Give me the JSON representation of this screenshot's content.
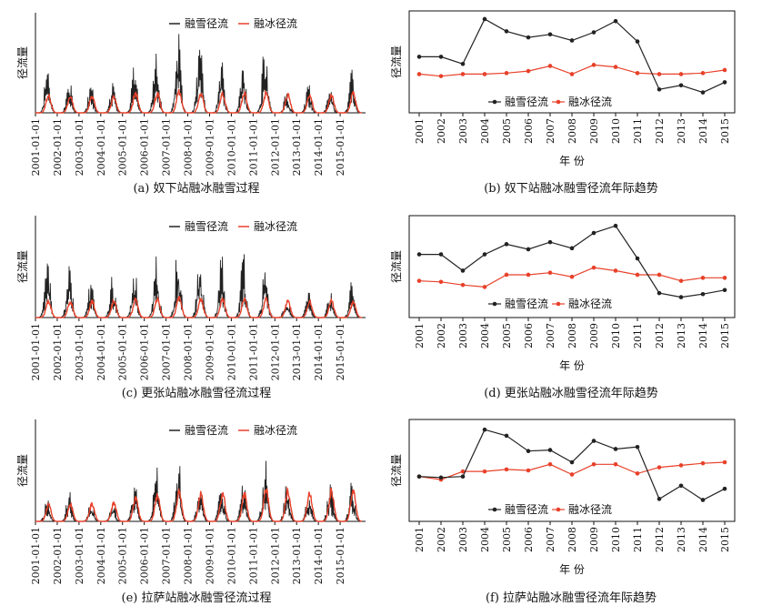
{
  "legend": {
    "snow": "融雪径流",
    "ice": "融冰径流"
  },
  "colors": {
    "snow": "#222222",
    "ice": "#e8412a"
  },
  "ylabel": "径流量",
  "xlabel_year": "年 份",
  "captions": [
    "(a) 奴下站融冰融雪过程",
    "(b) 奴下站融冰融雪径流年际趋势",
    "(c) 更张站融冰融雪径流过程",
    "(d) 更张站融冰融雪径流年际趋势",
    "(e) 拉萨站融冰融雪径流过程",
    "(f) 拉萨站融冰融雪径流年际趋势"
  ],
  "chart_data": [
    {
      "panel": "a",
      "type": "area",
      "x": [
        "2001-01-01",
        "2002-01-01",
        "2003-01-01",
        "2004-01-01",
        "2005-01-01",
        "2006-01-01",
        "2007-01-01",
        "2008-01-01",
        "2009-01-01",
        "2010-01-01",
        "2011-01-01",
        "2012-01-01",
        "2013-01-01",
        "2014-01-01",
        "2015-01-01"
      ],
      "ylabel": "径流量",
      "series": [
        {
          "name": "融雪径流",
          "annual_peak": [
            0.52,
            0.36,
            0.32,
            0.34,
            0.52,
            0.66,
            0.84,
            0.76,
            0.64,
            0.58,
            0.8,
            0.24,
            0.3,
            0.28,
            0.44
          ]
        },
        {
          "name": "融冰径流",
          "annual_peak": [
            0.2,
            0.18,
            0.18,
            0.18,
            0.22,
            0.22,
            0.24,
            0.22,
            0.22,
            0.22,
            0.22,
            0.2,
            0.2,
            0.2,
            0.22
          ]
        }
      ]
    },
    {
      "panel": "b",
      "type": "line",
      "x": [
        2001,
        2002,
        2003,
        2004,
        2005,
        2006,
        2007,
        2008,
        2009,
        2010,
        2011,
        2012,
        2013,
        2014,
        2015
      ],
      "ylabel": "径流量",
      "series": [
        {
          "name": "融雪径流",
          "values": [
            0.55,
            0.55,
            0.48,
            0.92,
            0.8,
            0.74,
            0.77,
            0.71,
            0.79,
            0.9,
            0.7,
            0.23,
            0.27,
            0.2,
            0.3
          ]
        },
        {
          "name": "融冰径流",
          "values": [
            0.38,
            0.36,
            0.38,
            0.38,
            0.39,
            0.41,
            0.46,
            0.38,
            0.47,
            0.45,
            0.39,
            0.38,
            0.38,
            0.39,
            0.42
          ]
        }
      ]
    },
    {
      "panel": "c",
      "type": "area",
      "x": [
        "2001-01-01",
        "2002-01-01",
        "2003-01-01",
        "2004-01-01",
        "2005-01-01",
        "2006-01-01",
        "2007-01-01",
        "2008-01-01",
        "2009-01-01",
        "2010-01-01",
        "2011-01-01",
        "2012-01-01",
        "2013-01-01",
        "2014-01-01",
        "2015-01-01"
      ],
      "ylabel": "径流量",
      "series": [
        {
          "name": "融雪径流",
          "annual_peak": [
            0.62,
            0.58,
            0.4,
            0.46,
            0.56,
            0.64,
            0.86,
            0.68,
            0.64,
            0.68,
            0.56,
            0.24,
            0.26,
            0.28,
            0.38
          ]
        },
        {
          "name": "融冰径流",
          "annual_peak": [
            0.18,
            0.18,
            0.18,
            0.18,
            0.2,
            0.2,
            0.22,
            0.2,
            0.2,
            0.2,
            0.2,
            0.18,
            0.18,
            0.18,
            0.18
          ]
        }
      ]
    },
    {
      "panel": "d",
      "type": "line",
      "x": [
        2001,
        2002,
        2003,
        2004,
        2005,
        2006,
        2007,
        2008,
        2009,
        2010,
        2011,
        2012,
        2013,
        2014,
        2015
      ],
      "ylabel": "径流量",
      "series": [
        {
          "name": "融雪径流",
          "values": [
            0.62,
            0.62,
            0.46,
            0.62,
            0.72,
            0.67,
            0.74,
            0.68,
            0.83,
            0.9,
            0.58,
            0.24,
            0.2,
            0.23,
            0.27
          ]
        },
        {
          "name": "融冰径流",
          "values": [
            0.36,
            0.35,
            0.32,
            0.3,
            0.42,
            0.42,
            0.44,
            0.4,
            0.49,
            0.46,
            0.42,
            0.42,
            0.36,
            0.39,
            0.39
          ]
        }
      ]
    },
    {
      "panel": "e",
      "type": "area",
      "x": [
        "2001-01-01",
        "2002-01-01",
        "2003-01-01",
        "2004-01-01",
        "2005-01-01",
        "2006-01-01",
        "2007-01-01",
        "2008-01-01",
        "2009-01-01",
        "2010-01-01",
        "2011-01-01",
        "2012-01-01",
        "2013-01-01",
        "2014-01-01",
        "2015-01-01"
      ],
      "ylabel": "径流量",
      "series": [
        {
          "name": "融雪径流",
          "annual_peak": [
            0.24,
            0.32,
            0.22,
            0.22,
            0.46,
            0.7,
            0.72,
            0.42,
            0.4,
            0.42,
            0.66,
            0.4,
            0.34,
            0.4,
            0.46
          ]
        },
        {
          "name": "融冰径流",
          "annual_peak": [
            0.18,
            0.2,
            0.2,
            0.2,
            0.26,
            0.28,
            0.32,
            0.3,
            0.3,
            0.3,
            0.34,
            0.34,
            0.32,
            0.34,
            0.34
          ]
        }
      ]
    },
    {
      "panel": "f",
      "type": "line",
      "x": [
        2001,
        2002,
        2003,
        2004,
        2005,
        2006,
        2007,
        2008,
        2009,
        2010,
        2011,
        2012,
        2013,
        2014,
        2015
      ],
      "ylabel": "径流量",
      "series": [
        {
          "name": "融雪径流",
          "values": [
            0.44,
            0.43,
            0.44,
            0.9,
            0.84,
            0.69,
            0.7,
            0.58,
            0.79,
            0.71,
            0.73,
            0.22,
            0.35,
            0.21,
            0.32
          ]
        },
        {
          "name": "融冰径流",
          "values": [
            0.44,
            0.41,
            0.49,
            0.49,
            0.51,
            0.5,
            0.56,
            0.46,
            0.56,
            0.56,
            0.47,
            0.53,
            0.55,
            0.57,
            0.58
          ]
        }
      ]
    }
  ]
}
